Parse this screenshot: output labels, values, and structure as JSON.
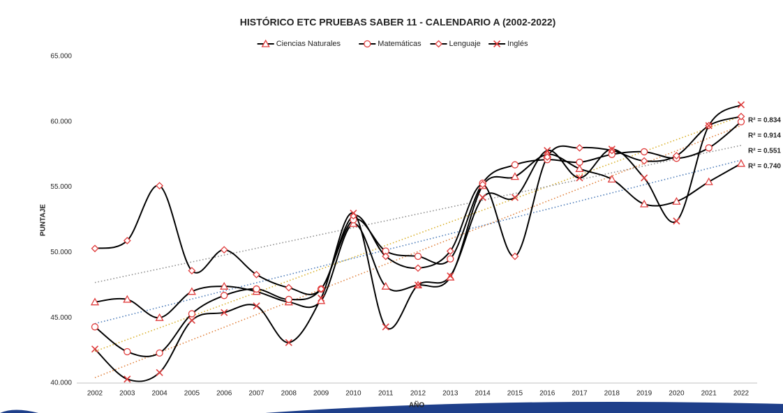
{
  "chart_data": {
    "type": "line",
    "title": "HISTÓRICO ETC PRUEBAS SABER 11 - CALENDARIO A (2002-2022)",
    "x_label": "AÑO",
    "y_label": "PUNTAJE",
    "categories": [
      "2002",
      "2003",
      "2004",
      "2005",
      "2006",
      "2007",
      "2008",
      "2009",
      "2010",
      "2011",
      "2012",
      "2013",
      "2014",
      "2015",
      "2016",
      "2017",
      "2018",
      "2019",
      "2020",
      "2021",
      "2022"
    ],
    "ylim": [
      40,
      65
    ],
    "yticks": [
      {
        "value": 40,
        "label": "40.000"
      },
      {
        "value": 45,
        "label": "45.000"
      },
      {
        "value": 50,
        "label": "50.000"
      },
      {
        "value": 55,
        "label": "55.000"
      },
      {
        "value": 60,
        "label": "60.000"
      },
      {
        "value": 65,
        "label": "65.000"
      }
    ],
    "legend": "top",
    "series": [
      {
        "name": "Ciencias Naturales",
        "color": "#000000",
        "marker": "triangle",
        "marker_color": "#e03c3c",
        "values": [
          46.2,
          46.4,
          45.0,
          47.0,
          47.4,
          47.0,
          46.2,
          46.3,
          52.2,
          47.4,
          47.5,
          48.1,
          55.1,
          55.8,
          57.5,
          56.4,
          55.6,
          53.7,
          53.9,
          55.4,
          56.8
        ],
        "trendline": {
          "color": "#4a7ab8",
          "label": "R² = 0.740"
        }
      },
      {
        "name": "Matemáticas",
        "color": "#000000",
        "marker": "circle",
        "marker_color": "#e03c3c",
        "values": [
          44.3,
          42.4,
          42.3,
          45.3,
          46.7,
          47.2,
          46.4,
          47.2,
          52.5,
          50.1,
          49.7,
          49.5,
          55.3,
          56.7,
          57.1,
          56.9,
          57.5,
          57.7,
          57.2,
          58.0,
          60.0
        ],
        "trendline": {
          "color": "#d9b02a",
          "label": "R² = 0.834"
        }
      },
      {
        "name": "Lenguaje",
        "color": "#000000",
        "marker": "diamond",
        "marker_color": "#e03c3c",
        "values": [
          50.3,
          50.9,
          55.1,
          48.6,
          50.2,
          48.3,
          47.3,
          47.2,
          52.8,
          49.7,
          48.8,
          50.1,
          55.2,
          49.7,
          57.3,
          58.0,
          57.8,
          57.0,
          57.4,
          59.7,
          60.4
        ],
        "trendline": {
          "color": "#8c8c8c",
          "label": "R² = 0.551"
        }
      },
      {
        "name": "Inglés",
        "color": "#000000",
        "marker": "x",
        "marker_color": "#e03c3c",
        "values": [
          42.6,
          40.3,
          40.8,
          44.8,
          45.4,
          45.9,
          43.1,
          46.5,
          53.0,
          44.3,
          47.5,
          48.2,
          54.2,
          54.2,
          57.8,
          55.7,
          57.9,
          55.7,
          52.4,
          59.7,
          61.3
        ],
        "trendline": {
          "color": "#e0803c",
          "label": "R² = 0.914"
        }
      }
    ]
  }
}
